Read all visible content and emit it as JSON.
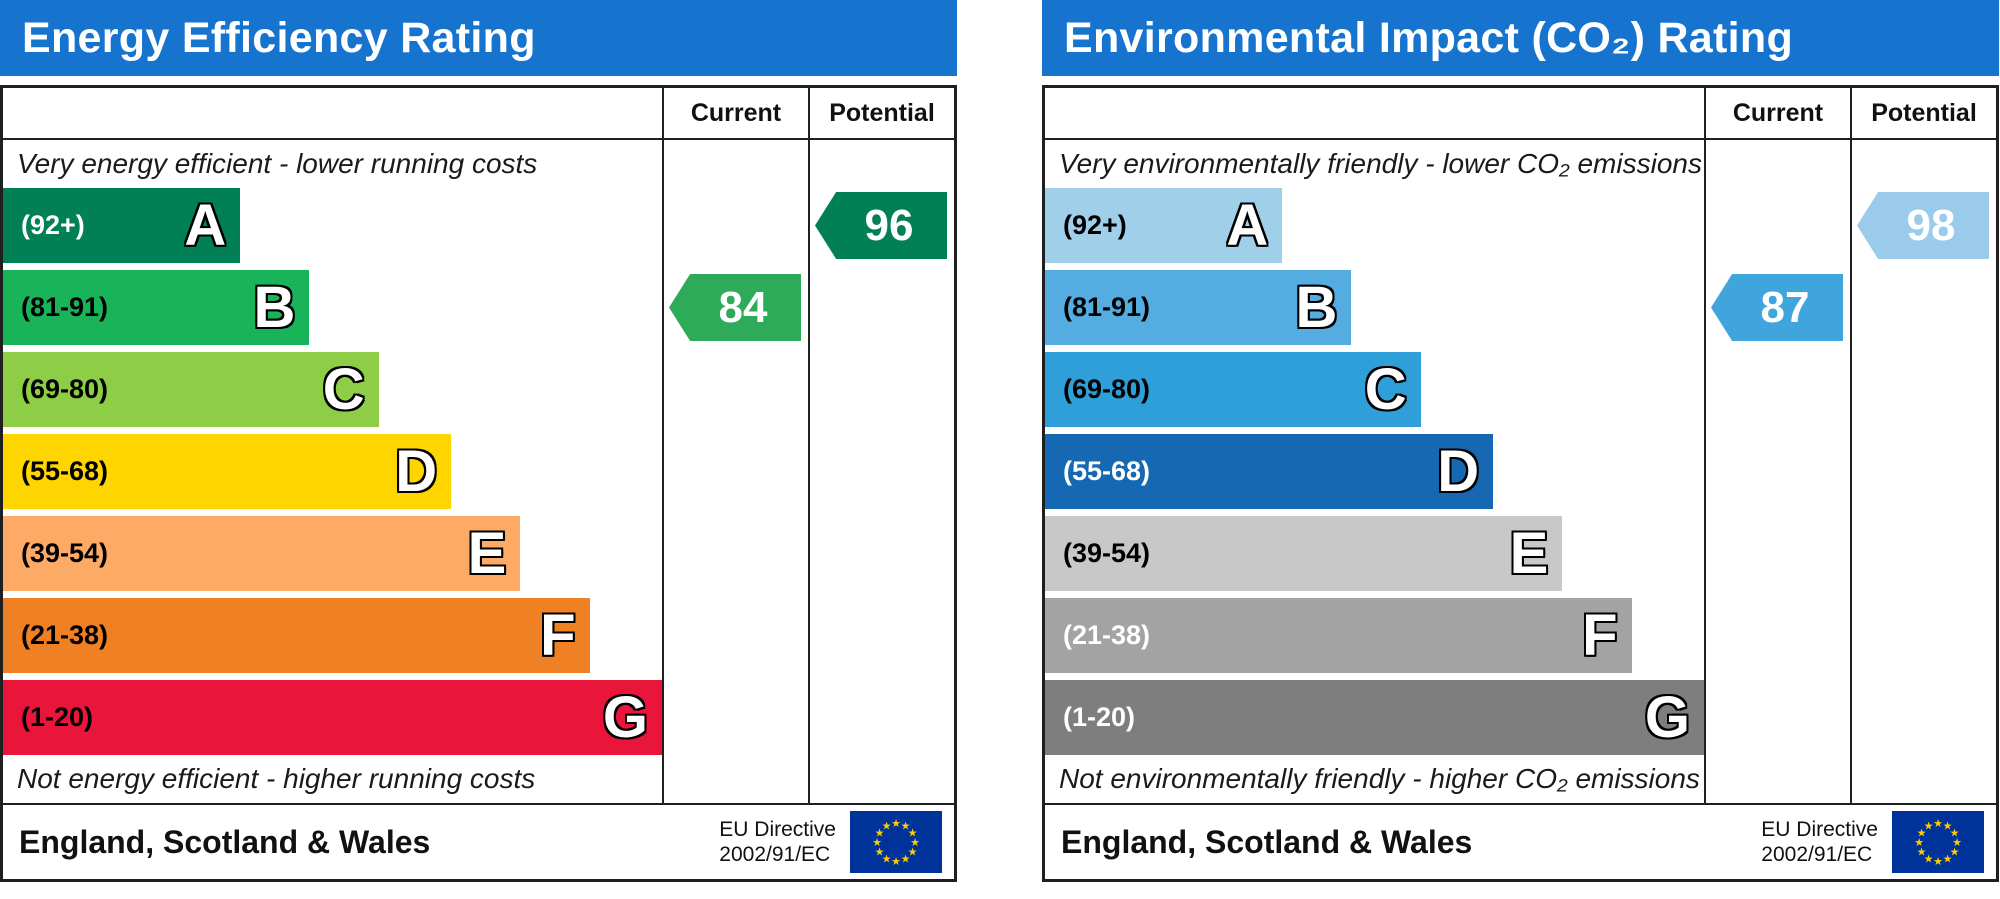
{
  "header_bar_color": "#1674cf",
  "eu_flag": {
    "bg": "#003399",
    "star_color": "#ffcc00"
  },
  "chart_data": [
    {
      "type": "bar",
      "chart_kind": "epc-energy-efficiency",
      "title": "Energy Efficiency Rating",
      "columns": {
        "current": "Current",
        "potential": "Potential"
      },
      "top_note": "Very energy efficient - lower running costs",
      "bottom_note": "Not energy efficient - higher running costs",
      "footer": {
        "region": "England, Scotland & Wales",
        "directive_line1": "EU Directive",
        "directive_line2": "2002/91/EC"
      },
      "bands": [
        {
          "letter": "A",
          "range": "(92+)",
          "range_min": 92,
          "range_max": 100,
          "color": "#008054",
          "length_pct": 36,
          "range_label_color": "#ffffff"
        },
        {
          "letter": "B",
          "range": "(81-91)",
          "range_min": 81,
          "range_max": 91,
          "color": "#19b459",
          "length_pct": 46.5,
          "range_label_color": "#000000"
        },
        {
          "letter": "C",
          "range": "(69-80)",
          "range_min": 69,
          "range_max": 80,
          "color": "#8dce46",
          "length_pct": 57,
          "range_label_color": "#000000"
        },
        {
          "letter": "D",
          "range": "(55-68)",
          "range_min": 55,
          "range_max": 68,
          "color": "#ffd500",
          "length_pct": 68,
          "range_label_color": "#000000"
        },
        {
          "letter": "E",
          "range": "(39-54)",
          "range_min": 39,
          "range_max": 54,
          "color": "#fcaa65",
          "length_pct": 78.5,
          "range_label_color": "#000000"
        },
        {
          "letter": "F",
          "range": "(21-38)",
          "range_min": 21,
          "range_max": 38,
          "color": "#ef8023",
          "length_pct": 89,
          "range_label_color": "#000000"
        },
        {
          "letter": "G",
          "range": "(1-20)",
          "range_min": 1,
          "range_max": 20,
          "color": "#e9153b",
          "length_pct": 100,
          "range_label_color": "#000000"
        }
      ],
      "current": {
        "value": 84,
        "band": "B",
        "band_index": 1,
        "arrow_color": "#2eab58"
      },
      "potential": {
        "value": 96,
        "band": "A",
        "band_index": 0,
        "arrow_color": "#008054"
      }
    },
    {
      "type": "bar",
      "chart_kind": "epc-environmental-impact",
      "title": "Environmental Impact (CO₂) Rating",
      "columns": {
        "current": "Current",
        "potential": "Potential"
      },
      "top_note": "Very environmentally friendly - lower CO₂ emissions",
      "bottom_note": "Not environmentally friendly - higher CO₂ emissions",
      "footer": {
        "region": "England, Scotland & Wales",
        "directive_line1": "EU Directive",
        "directive_line2": "2002/91/EC"
      },
      "bands": [
        {
          "letter": "A",
          "range": "(92+)",
          "range_min": 92,
          "range_max": 100,
          "color": "#9fcfe9",
          "length_pct": 36,
          "range_label_color": "#000000"
        },
        {
          "letter": "B",
          "range": "(81-91)",
          "range_min": 81,
          "range_max": 91,
          "color": "#54ace0",
          "length_pct": 46.5,
          "range_label_color": "#000000"
        },
        {
          "letter": "C",
          "range": "(69-80)",
          "range_min": 69,
          "range_max": 80,
          "color": "#2f9fda",
          "length_pct": 57,
          "range_label_color": "#000000"
        },
        {
          "letter": "D",
          "range": "(55-68)",
          "range_min": 55,
          "range_max": 68,
          "color": "#1668b3",
          "length_pct": 68,
          "range_label_color": "#ffffff"
        },
        {
          "letter": "E",
          "range": "(39-54)",
          "range_min": 39,
          "range_max": 54,
          "color": "#c8c8c8",
          "length_pct": 78.5,
          "range_label_color": "#000000"
        },
        {
          "letter": "F",
          "range": "(21-38)",
          "range_min": 21,
          "range_max": 38,
          "color": "#a3a3a3",
          "length_pct": 89,
          "range_label_color": "#ffffff"
        },
        {
          "letter": "G",
          "range": "(1-20)",
          "range_min": 1,
          "range_max": 20,
          "color": "#7e7e7e",
          "length_pct": 100,
          "range_label_color": "#ffffff"
        }
      ],
      "current": {
        "value": 87,
        "band": "B",
        "band_index": 1,
        "arrow_color": "#3fa5dc"
      },
      "potential": {
        "value": 98,
        "band": "A",
        "band_index": 0,
        "arrow_color": "#9bcbea"
      }
    }
  ]
}
